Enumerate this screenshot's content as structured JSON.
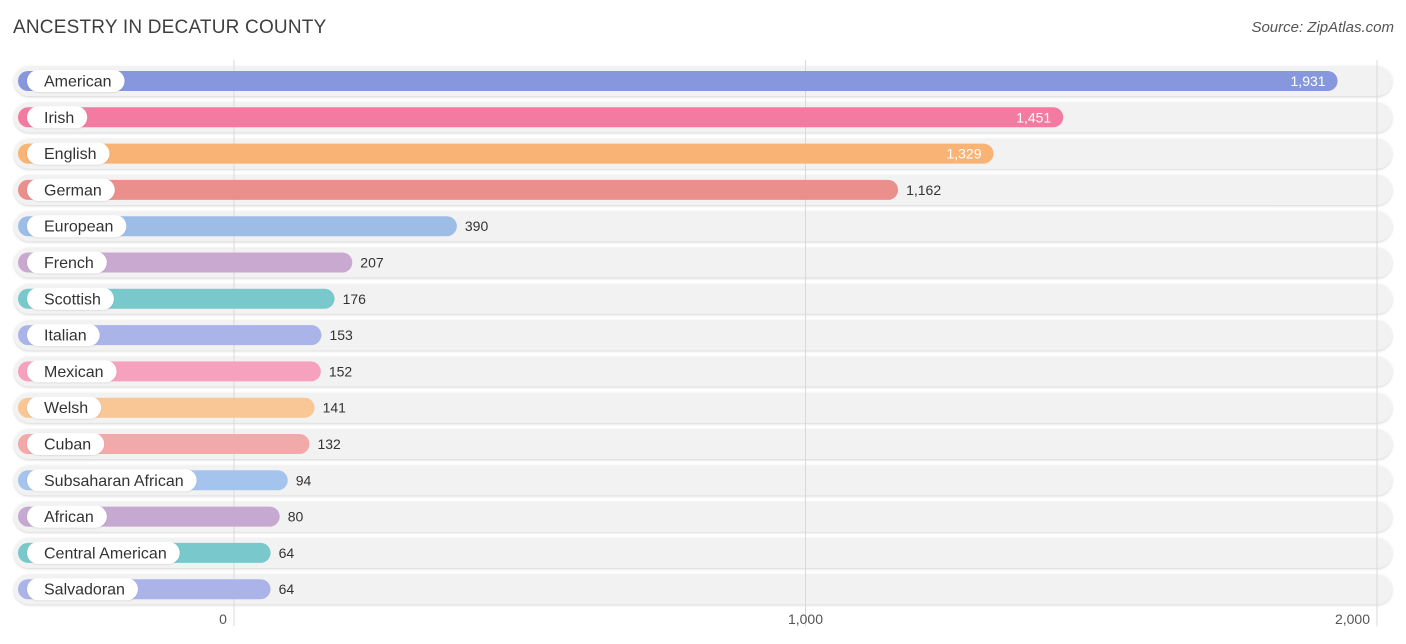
{
  "chart_data": {
    "type": "bar",
    "orientation": "horizontal",
    "title": "ANCESTRY IN DECATUR COUNTY",
    "source": "Source: ZipAtlas.com",
    "xlim": [
      0,
      2000
    ],
    "ticks": [
      0,
      1000,
      2000
    ],
    "tick_labels": [
      "0",
      "1,000",
      "2,000"
    ],
    "grid": true,
    "categories": [
      "American",
      "Irish",
      "English",
      "German",
      "European",
      "French",
      "Scottish",
      "Italian",
      "Mexican",
      "Welsh",
      "Cuban",
      "Subsaharan African",
      "African",
      "Central American",
      "Salvadoran"
    ],
    "values": [
      1931,
      1451,
      1329,
      1162,
      390,
      207,
      176,
      153,
      152,
      141,
      132,
      94,
      80,
      64,
      64
    ],
    "value_labels": [
      "1,931",
      "1,451",
      "1,329",
      "1,162",
      "390",
      "207",
      "176",
      "153",
      "152",
      "141",
      "132",
      "94",
      "80",
      "64",
      "64"
    ],
    "colors": [
      "#8797dd",
      "#f37aa1",
      "#f9b374",
      "#ea8f8c",
      "#9dbde7",
      "#c9a9cf",
      "#78c8cc",
      "#aab4e8",
      "#f6a2be",
      "#f9c695",
      "#f1a9a9",
      "#a4c4ed",
      "#c6a9d0",
      "#78c8cc",
      "#aab4e8"
    ]
  }
}
